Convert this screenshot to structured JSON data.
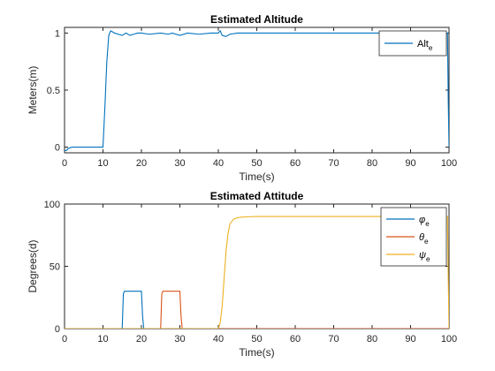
{
  "chart_data": [
    {
      "type": "line",
      "title": "Estimated Altitude",
      "xlabel": "Time(s)",
      "ylabel": "Meters(m)",
      "xlim": [
        0,
        100
      ],
      "ylim": [
        -0.05,
        1.05
      ],
      "xticks": [
        0,
        10,
        20,
        30,
        40,
        50,
        60,
        70,
        80,
        90,
        100
      ],
      "yticks": [
        0,
        0.5,
        1
      ],
      "ytick_labels": [
        "0",
        "0.5",
        "1"
      ],
      "grid": false,
      "legend_position": "top-right",
      "series": [
        {
          "name": "Alt",
          "name_subscript": "e",
          "color": "#0072BD",
          "x": [
            0,
            0.5,
            1,
            2,
            10,
            10.5,
            11,
            11.5,
            12,
            12.5,
            13,
            14,
            15,
            16,
            17,
            18,
            19,
            20,
            22,
            25,
            27,
            28,
            30,
            32,
            35,
            38,
            40,
            40.5,
            41,
            42,
            43,
            45,
            50,
            60,
            70,
            80,
            90,
            99.6,
            99.8,
            100
          ],
          "y": [
            -0.03,
            -0.03,
            -0.01,
            0,
            0,
            0.35,
            0.75,
            0.98,
            1.02,
            1.01,
            1.0,
            0.99,
            0.98,
            1.0,
            0.98,
            0.99,
            1.0,
            1.0,
            0.99,
            1.0,
            0.99,
            1.0,
            0.98,
            1.0,
            0.99,
            1.0,
            1.0,
            1.02,
            0.98,
            0.97,
            0.99,
            1.0,
            1.0,
            1.0,
            1.0,
            1.0,
            1.0,
            1.0,
            0.4,
            0
          ]
        }
      ]
    },
    {
      "type": "line",
      "title": "Estimated Attitude",
      "xlabel": "Time(s)",
      "ylabel": "Degrees(d)",
      "xlim": [
        0,
        100
      ],
      "ylim": [
        0,
        100
      ],
      "xticks": [
        0,
        10,
        20,
        30,
        40,
        50,
        60,
        70,
        80,
        90,
        100
      ],
      "yticks": [
        0,
        50,
        100
      ],
      "ytick_labels": [
        "0",
        "50",
        "100"
      ],
      "grid": false,
      "legend_position": "top-right",
      "series": [
        {
          "name": "φ",
          "name_subscript": "e",
          "color": "#0072BD",
          "x": [
            0,
            15,
            15.3,
            15.6,
            20,
            20.3,
            20.6,
            100
          ],
          "y": [
            0,
            0,
            28,
            30,
            30,
            10,
            0,
            0
          ]
        },
        {
          "name": "θ",
          "name_subscript": "e",
          "color": "#D95319",
          "x": [
            0,
            25,
            25.3,
            25.6,
            30,
            30.3,
            30.6,
            100
          ],
          "y": [
            0,
            0,
            28,
            30,
            30,
            10,
            0,
            0
          ]
        },
        {
          "name": "ψ",
          "name_subscript": "e",
          "color": "#EDB120",
          "x": [
            0,
            40,
            40.5,
            41,
            41.5,
            42,
            42.5,
            43,
            44,
            45,
            46,
            48,
            50,
            55,
            99.6,
            99.8,
            100
          ],
          "y": [
            0,
            0,
            5,
            18,
            40,
            62,
            76,
            84,
            88,
            89,
            89.5,
            89.8,
            90,
            90,
            90,
            40,
            0
          ]
        }
      ]
    }
  ]
}
